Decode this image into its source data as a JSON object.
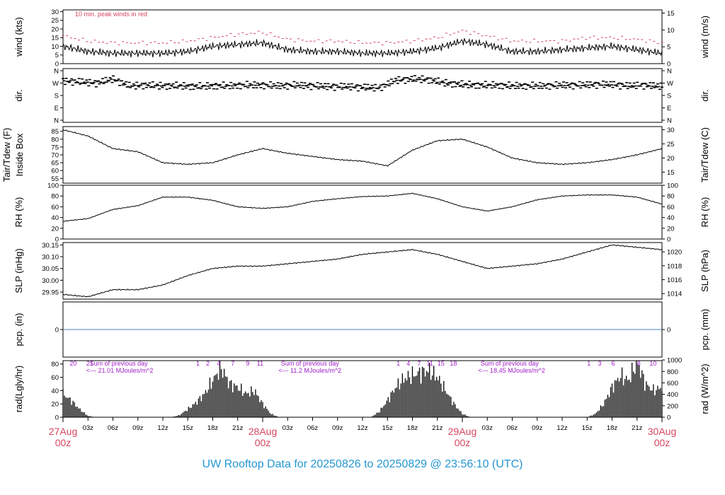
{
  "title": "UW Rooftop Data for 20250826  to  20250829 @ 23:56:10  (UTC)",
  "colors": {
    "day_labels": "#d6455f",
    "title": "#2496d3",
    "peak_wind": "#d6455f",
    "solar_notes": "#a020c8",
    "precip_line": "#4a7fd0"
  },
  "x_axis": {
    "hour_ticks": [
      "03z",
      "06z",
      "09z",
      "12z",
      "15z",
      "18z",
      "21z",
      "03z",
      "06z",
      "09z",
      "12z",
      "15z",
      "18z",
      "21z",
      "03z",
      "06z",
      "09z",
      "12z",
      "15z",
      "18z",
      "21z"
    ],
    "day_labels": [
      {
        "date": "27Aug",
        "hour": "00z"
      },
      {
        "date": "28Aug",
        "hour": "00z"
      },
      {
        "date": "29Aug",
        "hour": "00z"
      },
      {
        "date": "30Aug",
        "hour": "00z"
      }
    ]
  },
  "chart_data": [
    {
      "type": "line",
      "panel": "wind",
      "ylabel_left": "wind (kts)",
      "ylabel_right": "wind (m/s)",
      "left_ticks": [
        "30",
        "25",
        "20",
        "15",
        "10",
        "5",
        "0"
      ],
      "right_ticks": [
        "15",
        "10",
        "5",
        "0"
      ],
      "ylim": [
        0,
        31
      ],
      "annotation": "10 min. peak winds in red",
      "x_hours": [
        0,
        3,
        6,
        9,
        12,
        15,
        18,
        21,
        24,
        27,
        30,
        33,
        36,
        39,
        42,
        45,
        48,
        51,
        54,
        57,
        60,
        63,
        66,
        69,
        72
      ],
      "series": [
        {
          "values": [
            10,
            7,
            6,
            6,
            6,
            7,
            10,
            11,
            12,
            8,
            7,
            7,
            6,
            6,
            7,
            9,
            13,
            11,
            7,
            7,
            8,
            9,
            10,
            8,
            6
          ]
        },
        {
          "values": [
            16,
            13,
            12,
            12,
            12,
            13,
            15,
            17,
            18,
            14,
            13,
            13,
            12,
            12,
            13,
            15,
            19,
            16,
            13,
            13,
            13,
            15,
            15,
            14,
            12
          ]
        }
      ]
    },
    {
      "type": "scatter",
      "panel": "direction",
      "ylabel_left": "dir.",
      "ylabel_right": "dir.",
      "left_ticks": [
        "N",
        "W",
        "S",
        "E",
        "N"
      ],
      "right_ticks": [
        "N",
        "W",
        "S",
        "E",
        "N"
      ],
      "ylim": [
        0,
        360
      ],
      "x_hours": [
        0,
        2,
        4,
        6,
        8,
        10,
        12,
        14,
        16,
        18,
        20,
        22,
        24,
        26,
        28,
        30,
        32,
        34,
        36,
        38,
        40,
        42,
        44,
        46,
        48,
        50,
        52,
        54,
        56,
        58,
        60,
        62,
        64,
        66,
        68,
        70,
        72
      ],
      "values": [
        285,
        280,
        270,
        300,
        250,
        255,
        250,
        250,
        245,
        250,
        250,
        255,
        255,
        250,
        255,
        250,
        245,
        245,
        240,
        235,
        290,
        300,
        295,
        270,
        260,
        255,
        255,
        250,
        250,
        250,
        255,
        255,
        260,
        260,
        250,
        255,
        245
      ]
    },
    {
      "type": "line",
      "panel": "temperature",
      "ylabel_left": "Tair/Tdew (F)",
      "ylabel_left2": "Inside Box",
      "ylabel_right": "Tair/Tdew (C)",
      "left_ticks": [
        "85",
        "80",
        "75",
        "70",
        "65",
        "60",
        "55"
      ],
      "right_ticks": [
        "30",
        "25",
        "20",
        "15"
      ],
      "ylim": [
        52,
        88
      ],
      "x_hours": [
        0,
        3,
        6,
        9,
        12,
        15,
        18,
        21,
        24,
        27,
        30,
        33,
        36,
        39,
        42,
        45,
        48,
        51,
        54,
        57,
        60,
        63,
        66,
        69,
        72
      ],
      "values": [
        86,
        82,
        74,
        72,
        65,
        64,
        65,
        70,
        74,
        71,
        69,
        67,
        66,
        63,
        73,
        79,
        80,
        75,
        68,
        65,
        64,
        65,
        67,
        70,
        74
      ]
    },
    {
      "type": "line",
      "panel": "rh",
      "ylabel_left": "RH (%)",
      "ylabel_right": "RH (%)",
      "left_ticks": [
        "100",
        "80",
        "60",
        "40",
        "20",
        "0"
      ],
      "right_ticks": [
        "100",
        "80",
        "60",
        "40",
        "20",
        "0"
      ],
      "ylim": [
        0,
        100
      ],
      "x_hours": [
        0,
        3,
        6,
        9,
        12,
        15,
        18,
        21,
        24,
        27,
        30,
        33,
        36,
        39,
        42,
        45,
        48,
        51,
        54,
        57,
        60,
        63,
        66,
        69,
        72
      ],
      "values": [
        33,
        38,
        55,
        62,
        78,
        78,
        72,
        60,
        57,
        60,
        70,
        75,
        79,
        80,
        85,
        75,
        60,
        52,
        60,
        73,
        80,
        82,
        82,
        78,
        65
      ]
    },
    {
      "type": "line",
      "panel": "pressure",
      "ylabel_left": "SLP (inHg)",
      "ylabel_right": "SLP (hPa)",
      "left_ticks": [
        "30.15",
        "30.10",
        "30.05",
        "30.00",
        "29.95"
      ],
      "right_ticks": [
        "1020",
        "1018",
        "1016",
        "1014"
      ],
      "ylim": [
        29.92,
        30.16
      ],
      "x_hours": [
        0,
        3,
        6,
        9,
        12,
        15,
        18,
        21,
        24,
        27,
        30,
        33,
        36,
        39,
        42,
        45,
        48,
        51,
        54,
        57,
        60,
        63,
        66,
        69,
        72
      ],
      "values": [
        29.94,
        29.93,
        29.96,
        29.96,
        29.98,
        30.02,
        30.05,
        30.06,
        30.06,
        30.07,
        30.08,
        30.09,
        30.11,
        30.12,
        30.13,
        30.11,
        30.08,
        30.05,
        30.06,
        30.07,
        30.09,
        30.12,
        30.15,
        30.14,
        30.13
      ]
    },
    {
      "type": "line",
      "panel": "precipitation",
      "ylabel_left": "pcp. (in)",
      "ylabel_right": "pcp. (mm)",
      "left_ticks": [
        "0"
      ],
      "right_ticks": [
        "0"
      ],
      "x_hours": [
        0,
        72
      ],
      "values": [
        0,
        0
      ]
    },
    {
      "type": "area",
      "panel": "radiation",
      "ylabel_left": "rad(Lgly/hr)",
      "ylabel_right": "rad (W/m^2)",
      "left_ticks": [
        "80",
        "60",
        "40",
        "20",
        "0"
      ],
      "right_ticks": [
        "1000",
        "800",
        "600",
        "400",
        "200",
        "0"
      ],
      "ylim": [
        0,
        85
      ],
      "x_hours": [
        0,
        1,
        2,
        3,
        4,
        5,
        6,
        7,
        8,
        9,
        10,
        11,
        12,
        13,
        14,
        15,
        16,
        17,
        18,
        19,
        20,
        21,
        22,
        23,
        24,
        25,
        26,
        27,
        28,
        29,
        30,
        31,
        32,
        33,
        34,
        35,
        36,
        37,
        38,
        39,
        40,
        41,
        42,
        43,
        44,
        45,
        46,
        47,
        48,
        49,
        50,
        51,
        52,
        53,
        54,
        55,
        56,
        57,
        58,
        59,
        60,
        61,
        62,
        63,
        64,
        65,
        66,
        67,
        68,
        69,
        70,
        71,
        72
      ],
      "values": [
        35,
        25,
        12,
        2,
        0,
        0,
        0,
        0,
        0,
        0,
        0,
        0,
        0,
        0,
        3,
        12,
        22,
        35,
        55,
        75,
        50,
        45,
        35,
        40,
        20,
        5,
        0,
        0,
        0,
        0,
        0,
        0,
        0,
        0,
        0,
        0,
        0,
        0,
        8,
        25,
        45,
        58,
        63,
        67,
        70,
        60,
        40,
        20,
        5,
        0,
        0,
        0,
        0,
        0,
        0,
        0,
        0,
        0,
        0,
        0,
        0,
        0,
        0,
        0,
        5,
        20,
        45,
        62,
        55,
        85,
        50,
        40,
        45
      ],
      "day_notes": [
        {
          "text": "20",
          "hour": 0.8
        },
        {
          "text": "21",
          "hour": 2.8
        },
        {
          "text": "Sum of previous day",
          "hour": 3.2
        },
        {
          "text": "<--- 21.01 MJoules/m^2",
          "hour": 2.8,
          "row": 2
        },
        {
          "text": "1",
          "hour": 16.0
        },
        {
          "text": "2",
          "hour": 17.2
        },
        {
          "text": "4",
          "hour": 18.5
        },
        {
          "text": "7",
          "hour": 20.2
        },
        {
          "text": "9",
          "hour": 22.0
        },
        {
          "text": "11",
          "hour": 23.3
        },
        {
          "text": "Sum of previous day",
          "hour": 26.2
        },
        {
          "text": "<--- 11.2 MJoules/m^2",
          "hour": 25.9,
          "row": 2
        },
        {
          "text": "1",
          "hour": 40.1
        },
        {
          "text": "4",
          "hour": 41.3
        },
        {
          "text": "7",
          "hour": 42.6
        },
        {
          "text": "11",
          "hour": 43.7
        },
        {
          "text": "15",
          "hour": 45.0
        },
        {
          "text": "18",
          "hour": 46.5
        },
        {
          "text": "Sum of previous day",
          "hour": 50.2
        },
        {
          "text": "<--- 18.45 MJoules/m^2",
          "hour": 49.9,
          "row": 2
        },
        {
          "text": "1",
          "hour": 63.0
        },
        {
          "text": "3",
          "hour": 64.3
        },
        {
          "text": "6",
          "hour": 65.9
        },
        {
          "text": "8",
          "hour": 69.0
        },
        {
          "text": "10",
          "hour": 70.5
        }
      ]
    }
  ]
}
